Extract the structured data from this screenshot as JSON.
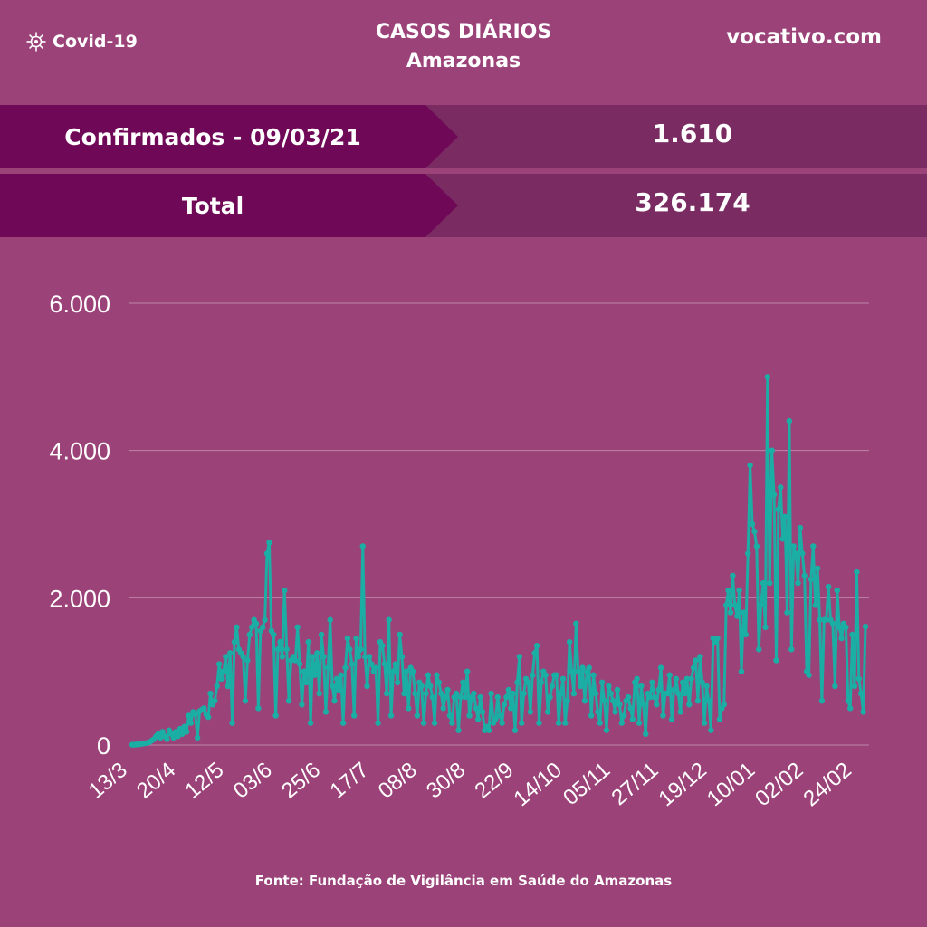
{
  "header": {
    "brand": "Covid-19",
    "title_line1": "CASOS DIÁRIOS",
    "title_line2": "Amazonas",
    "site": "vocativo.com"
  },
  "summary": [
    {
      "label": "Confirmados - 09/03/21",
      "value": "1.610"
    },
    {
      "label": "Total",
      "value": "326.174"
    }
  ],
  "source": "Fonte: Fundação de Vigilância em Saúde do Amazonas",
  "colors": {
    "background": "#9b4379",
    "line": "#1aaea4",
    "label_bg": "#700858",
    "value_bg": "#7a2c62"
  },
  "chart_data": {
    "type": "line",
    "ylim": [
      0,
      6000
    ],
    "y_ticks": [
      0,
      2000,
      4000,
      6000
    ],
    "y_tick_labels": [
      "0",
      "2.000",
      "4.000",
      "6.000"
    ],
    "x_tick_labels": [
      "13/3",
      "20/4",
      "12/5",
      "03/6",
      "25/6",
      "17/7",
      "08/8",
      "30/8",
      "22/9",
      "14/10",
      "05/11",
      "27/11",
      "19/12",
      "10/01",
      "02/02",
      "24/02"
    ],
    "grid": true,
    "series": [
      {
        "values": [
          5,
          5,
          8,
          10,
          15,
          20,
          25,
          30,
          40,
          60,
          80,
          120,
          150,
          100,
          180,
          120,
          80,
          200,
          150,
          100,
          180,
          120,
          220,
          150,
          250,
          180,
          400,
          300,
          450,
          420,
          100,
          460,
          480,
          500,
          420,
          380,
          700,
          550,
          600,
          800,
          1100,
          900,
          1000,
          1200,
          800,
          1250,
          300,
          1400,
          1600,
          1300,
          1250,
          1200,
          600,
          1150,
          1500,
          1600,
          1700,
          1650,
          500,
          1550,
          1600,
          1700,
          2600,
          2750,
          1550,
          1500,
          400,
          1300,
          1400,
          1200,
          2100,
          1300,
          600,
          1150,
          1200,
          1150,
          1600,
          1100,
          550,
          1000,
          850,
          1400,
          300,
          1200,
          950,
          1250,
          700,
          1500,
          1200,
          450,
          1050,
          1700,
          800,
          600,
          900,
          750,
          950,
          300,
          1050,
          1450,
          1300,
          1100,
          400,
          1450,
          1200,
          1300,
          2700,
          1200,
          800,
          1200,
          1100,
          1000,
          1050,
          300,
          1400,
          1350,
          1100,
          700,
          1700,
          400,
          1000,
          1100,
          850,
          1500,
          1200,
          700,
          1000,
          500,
          1050,
          1000,
          700,
          400,
          850,
          800,
          300,
          700,
          950,
          800,
          650,
          300,
          950,
          850,
          700,
          500,
          650,
          750,
          400,
          300,
          650,
          700,
          200,
          650,
          850,
          650,
          1000,
          400,
          650,
          700,
          500,
          350,
          650,
          450,
          200,
          250,
          200,
          700,
          300,
          350,
          650,
          400,
          300,
          550,
          650,
          750,
          500,
          700,
          200,
          850,
          1200,
          300,
          700,
          900,
          850,
          450,
          950,
          1250,
          1350,
          300,
          850,
          1000,
          950,
          450,
          650,
          800,
          950,
          950,
          300,
          700,
          900,
          300,
          600,
          1400,
          1000,
          700,
          1650,
          1000,
          800,
          1050,
          600,
          1000,
          1050,
          400,
          950,
          700,
          450,
          300,
          850,
          600,
          200,
          800,
          700,
          600,
          450,
          750,
          550,
          300,
          400,
          600,
          650,
          500,
          350,
          850,
          900,
          300,
          800,
          550,
          150,
          700,
          650,
          850,
          650,
          550,
          750,
          1050,
          400,
          700,
          700,
          950,
          350,
          750,
          900,
          700,
          450,
          850,
          700,
          900,
          550,
          900,
          1050,
          1150,
          600,
          1200,
          850,
          300,
          800,
          600,
          200,
          1450,
          1400,
          1450,
          350,
          500,
          550,
          1900,
          2100,
          1800,
          2300,
          1900,
          1750,
          2100,
          1000,
          1800,
          1500,
          2600,
          3800,
          3000,
          2900,
          2700,
          1300,
          1900,
          2200,
          1600,
          5000,
          2200,
          4000,
          3400,
          1150,
          3200,
          3500,
          2800,
          3100,
          1800,
          4400,
          1300,
          2700,
          2600,
          2200,
          2950,
          2600,
          2300,
          1000,
          950,
          2250,
          2700,
          1900,
          2400,
          1700,
          600,
          1700,
          1700,
          2150,
          1700,
          1650,
          800,
          2100,
          1600,
          1450,
          1650,
          1600,
          600,
          500,
          1500,
          800,
          2350,
          900,
          700,
          450,
          1610
        ]
      }
    ]
  }
}
